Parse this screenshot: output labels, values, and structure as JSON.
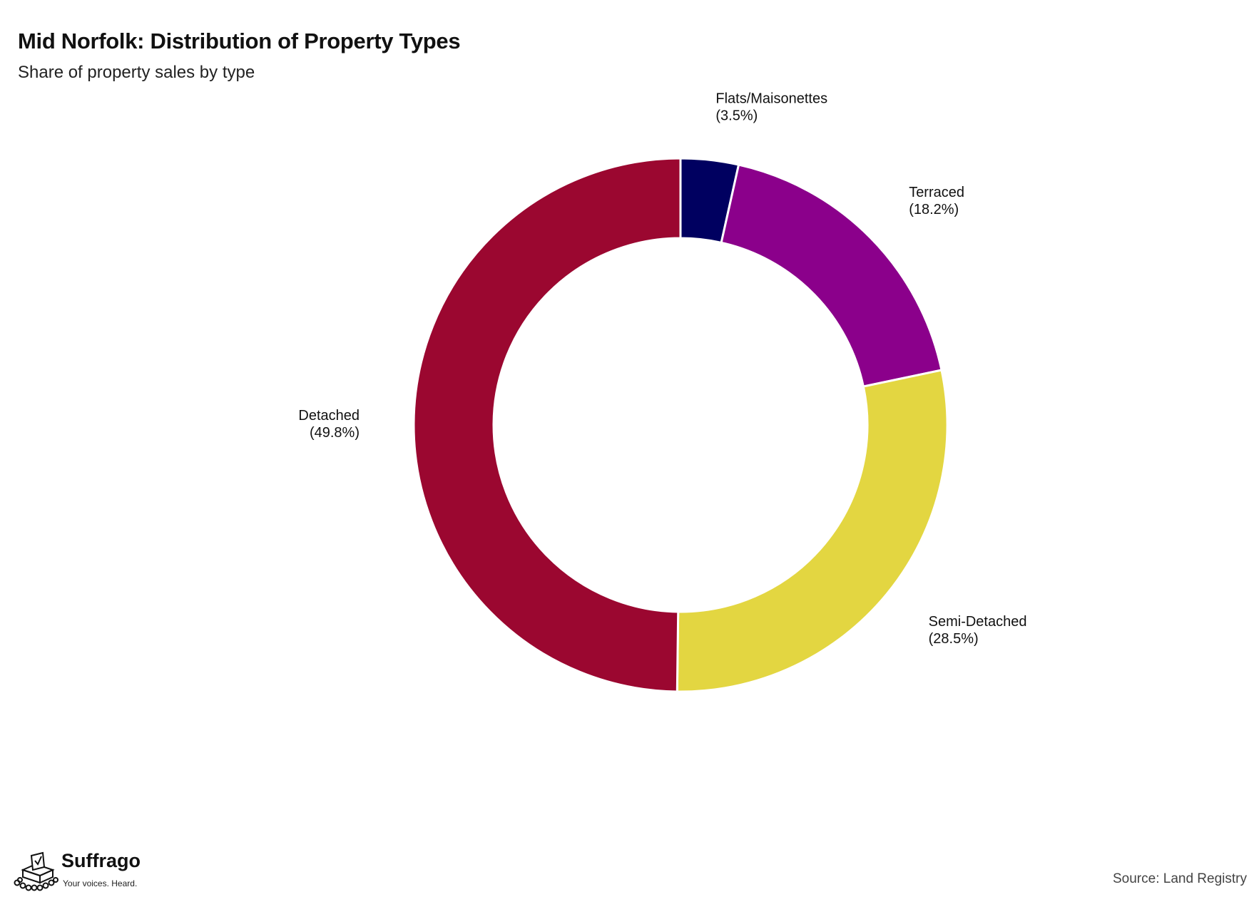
{
  "chart_data": {
    "type": "pie",
    "variant": "donut",
    "title": "Mid Norfolk: Distribution of Property Types",
    "subtitle": "Share of property sales by type",
    "slices": [
      {
        "label": "Flats/Maisonettes",
        "value": 3.5,
        "value_label": "(3.5%)",
        "color": "#000060"
      },
      {
        "label": "Terraced",
        "value": 18.2,
        "value_label": "(18.2%)",
        "color": "#8b008b"
      },
      {
        "label": "Semi-Detached",
        "value": 28.5,
        "value_label": "(28.5%)",
        "color": "#e3d641"
      },
      {
        "label": "Detached",
        "value": 49.8,
        "value_label": "(49.8%)",
        "color": "#9b0730"
      }
    ],
    "legend": "none",
    "direction": "clockwise from top"
  },
  "branding": {
    "name": "Suffrago",
    "tagline": "Your voices. Heard."
  },
  "source": "Source: Land Registry"
}
